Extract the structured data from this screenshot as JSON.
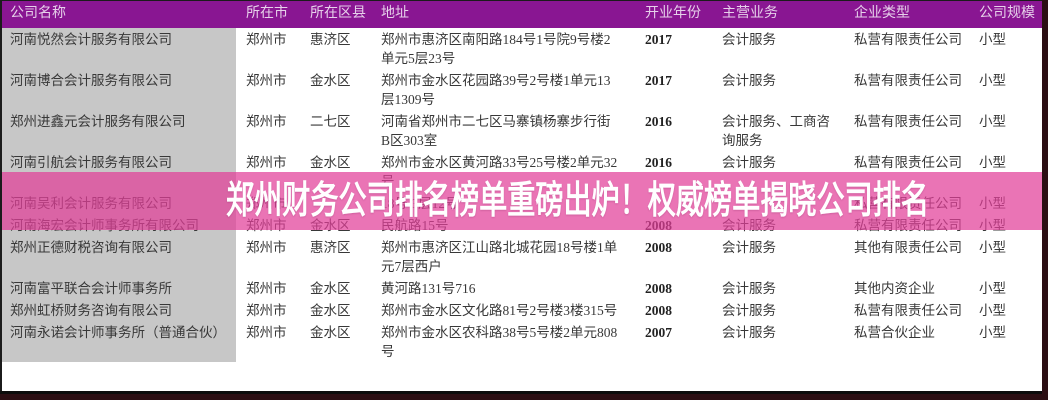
{
  "banner": {
    "title": "郑州财务公司排名榜单重磅出炉！权威榜单揭晓公司排名",
    "overlay_color": "rgba(226,62,152,0.72)",
    "text_color": "#ffffff"
  },
  "colors": {
    "header_bg": "#891692",
    "header_text": "#e6d0ea",
    "name_column_bg": "#c7c7c7",
    "row_text": "#383838",
    "edge_strip": "#2b0e13",
    "bottom_rule": "#0c0c0c"
  },
  "table": {
    "columns": [
      "公司名称",
      "所在市",
      "所在区县",
      "地址",
      "开业年份",
      "主营业务",
      "企业类型",
      "公司规模"
    ],
    "rows": [
      {
        "name": "河南悦然会计服务有限公司",
        "city": "郑州市",
        "district": "惠济区",
        "address": "郑州市惠济区南阳路184号1号院9号楼2单元5层23号",
        "year": "2017",
        "business": "会计服务",
        "type": "私营有限责任公司",
        "size": "小型"
      },
      {
        "name": "河南博合会计服务有限公司",
        "city": "郑州市",
        "district": "金水区",
        "address": "郑州市金水区花园路39号2号楼1单元13层1309号",
        "year": "2017",
        "business": "会计服务",
        "type": "私营有限责任公司",
        "size": "小型"
      },
      {
        "name": "郑州进鑫元会计服务有限公司",
        "city": "郑州市",
        "district": "二七区",
        "address": "河南省郑州市二七区马寨镇杨寨步行街B区303室",
        "year": "2016",
        "business": "会计服务、工商咨询服务",
        "type": "私营有限责任公司",
        "size": "小型"
      },
      {
        "name": "河南引航会计服务有限公司",
        "city": "郑州市",
        "district": "金水区",
        "address": "郑州市金水区黄河路33号25号楼2单元32号",
        "year": "2016",
        "business": "会计服务",
        "type": "私营有限责任公司",
        "size": "小型"
      },
      {
        "name": "河南吴利会计服务有限公司",
        "city": "郑州市",
        "district": "",
        "address": "18号 3层12号",
        "year": "",
        "business": "",
        "type": "私营有限责任公司",
        "size": "小型"
      },
      {
        "name": "河南海宏会计师事务所有限公司",
        "city": "郑州市",
        "district": "金水区",
        "address": "民航路15号",
        "year": "2008",
        "business": "会计服务",
        "type": "私营有限责任公司",
        "size": "小型"
      },
      {
        "name": "郑州正德财税咨询有限公司",
        "city": "郑州市",
        "district": "惠济区",
        "address": "郑州市惠济区江山路北城花园18号楼1单元7层西户",
        "year": "2008",
        "business": "会计服务",
        "type": "其他有限责任公司",
        "size": "小型"
      },
      {
        "name": "河南富平联合会计师事务所",
        "city": "郑州市",
        "district": "金水区",
        "address": "黄河路131号716",
        "year": "2008",
        "business": "会计服务",
        "type": "其他内资企业",
        "size": "小型"
      },
      {
        "name": "郑州虹桥财务咨询有限公司",
        "city": "郑州市",
        "district": "金水区",
        "address": "郑州市金水区文化路81号2号楼3楼315号",
        "year": "2008",
        "business": "会计服务",
        "type": "私营有限责任公司",
        "size": "小型"
      },
      {
        "name": "河南永诺会计师事务所（普通合伙）",
        "city": "郑州市",
        "district": "金水区",
        "address": "郑州市金水区农科路38号5号楼2单元808号",
        "year": "2007",
        "business": "会计服务",
        "type": "私营合伙企业",
        "size": "小型"
      }
    ]
  }
}
